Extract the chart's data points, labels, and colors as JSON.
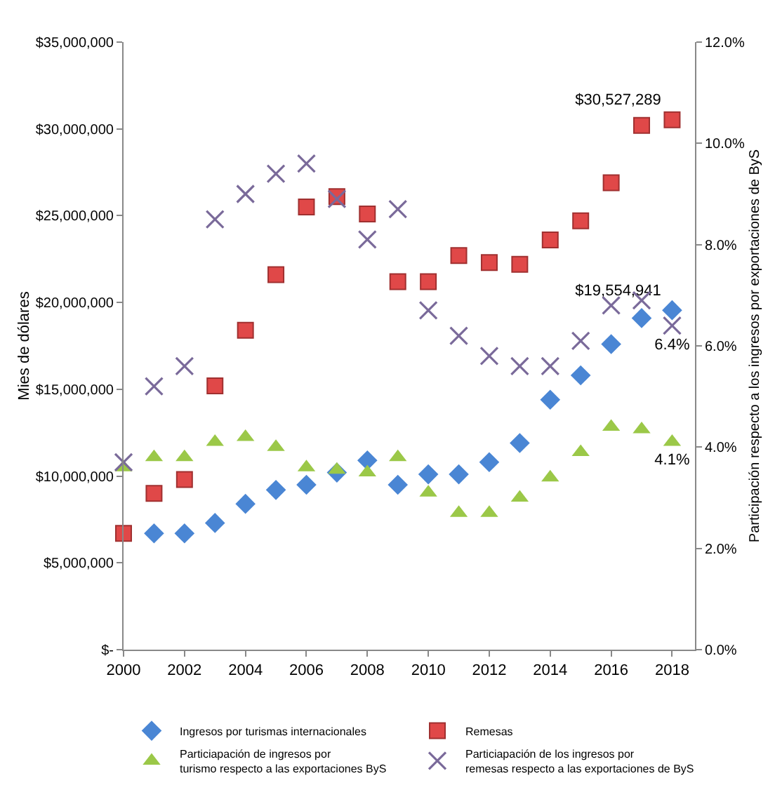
{
  "chart_data": {
    "type": "scatter",
    "ylabel": "Mies de dólares",
    "y2label": "Participación respecto a los ingresos por exportaciones de ByS",
    "x": [
      2000,
      2001,
      2002,
      2003,
      2004,
      2005,
      2006,
      2007,
      2008,
      2009,
      2010,
      2011,
      2012,
      2013,
      2014,
      2015,
      2016,
      2017,
      2018
    ],
    "xlim": [
      2000,
      2018.75
    ],
    "xticks": [
      2000,
      2002,
      2004,
      2006,
      2008,
      2010,
      2012,
      2014,
      2016,
      2018
    ],
    "ylim": [
      0,
      35000000
    ],
    "yticks": [
      {
        "value": 0,
        "label": "$-"
      },
      {
        "value": 5000000,
        "label": "$5,000,000"
      },
      {
        "value": 10000000,
        "label": "$10,000,000"
      },
      {
        "value": 15000000,
        "label": "$15,000,000"
      },
      {
        "value": 20000000,
        "label": "$20,000,000"
      },
      {
        "value": 25000000,
        "label": "$25,000,000"
      },
      {
        "value": 30000000,
        "label": "$30,000,000"
      },
      {
        "value": 35000000,
        "label": "$35,000,000"
      }
    ],
    "y2lim": [
      0,
      12
    ],
    "y2ticks": [
      {
        "value": 0,
        "label": "0.0%"
      },
      {
        "value": 2,
        "label": "2.0%"
      },
      {
        "value": 4,
        "label": "4.0%"
      },
      {
        "value": 6,
        "label": "6.0%"
      },
      {
        "value": 8,
        "label": "8.0%"
      },
      {
        "value": 10,
        "label": "10.0%"
      },
      {
        "value": 12,
        "label": "12.0%"
      }
    ],
    "grid": false,
    "legend": "bottom",
    "series": [
      {
        "name": "Ingresos por turismas internacionales",
        "color": "#4a86d4",
        "marker": "diamond",
        "values": [
          null,
          6700000,
          6700000,
          7300000,
          8400000,
          9200000,
          9500000,
          10200000,
          10900000,
          9500000,
          10100000,
          10100000,
          10800000,
          11900000,
          14400000,
          15800000,
          17600000,
          19100000,
          19554941
        ],
        "value_labels": [
          null,
          null,
          null,
          null,
          null,
          null,
          null,
          null,
          null,
          null,
          null,
          null,
          null,
          null,
          null,
          null,
          null,
          null,
          "$19,554,941"
        ]
      },
      {
        "name": "Remesas",
        "color": "#e04848",
        "marker": "square",
        "values": [
          6700000,
          9000000,
          9800000,
          15200000,
          18400000,
          21600000,
          25500000,
          26100000,
          25100000,
          21200000,
          21200000,
          22700000,
          22300000,
          22200000,
          23600000,
          24700000,
          26900000,
          30200000,
          30527289
        ],
        "value_labels": [
          null,
          null,
          null,
          null,
          null,
          null,
          null,
          null,
          null,
          null,
          null,
          null,
          null,
          null,
          null,
          null,
          null,
          null,
          "$30,527,289"
        ]
      },
      {
        "name": "Particiapación de ingresos por turismo respecto a las exportaciones ByS",
        "color": "#9bc848",
        "marker": "triangle",
        "axis": "y2",
        "values": [
          3.6,
          3.8,
          3.8,
          4.1,
          4.2,
          4.0,
          3.6,
          3.55,
          3.5,
          3.8,
          3.1,
          2.7,
          2.7,
          3.0,
          3.4,
          3.9,
          4.4,
          4.35,
          4.1
        ],
        "value_labels": [
          null,
          null,
          null,
          null,
          null,
          null,
          null,
          null,
          null,
          null,
          null,
          null,
          null,
          null,
          null,
          null,
          null,
          null,
          "4.1%"
        ]
      },
      {
        "name": "Particiapación de los ingresos por remesas respecto a las exportaciones de ByS",
        "color": "#7a6a9a",
        "marker": "cross",
        "axis": "y2",
        "values": [
          3.7,
          5.2,
          5.6,
          8.5,
          9.0,
          9.4,
          9.6,
          8.9,
          8.1,
          8.7,
          6.7,
          6.2,
          5.8,
          5.6,
          5.6,
          6.1,
          6.8,
          6.9,
          6.4
        ],
        "value_labels": [
          null,
          null,
          null,
          null,
          null,
          null,
          null,
          null,
          null,
          null,
          null,
          null,
          null,
          null,
          null,
          null,
          null,
          null,
          "6.4%"
        ]
      }
    ]
  }
}
